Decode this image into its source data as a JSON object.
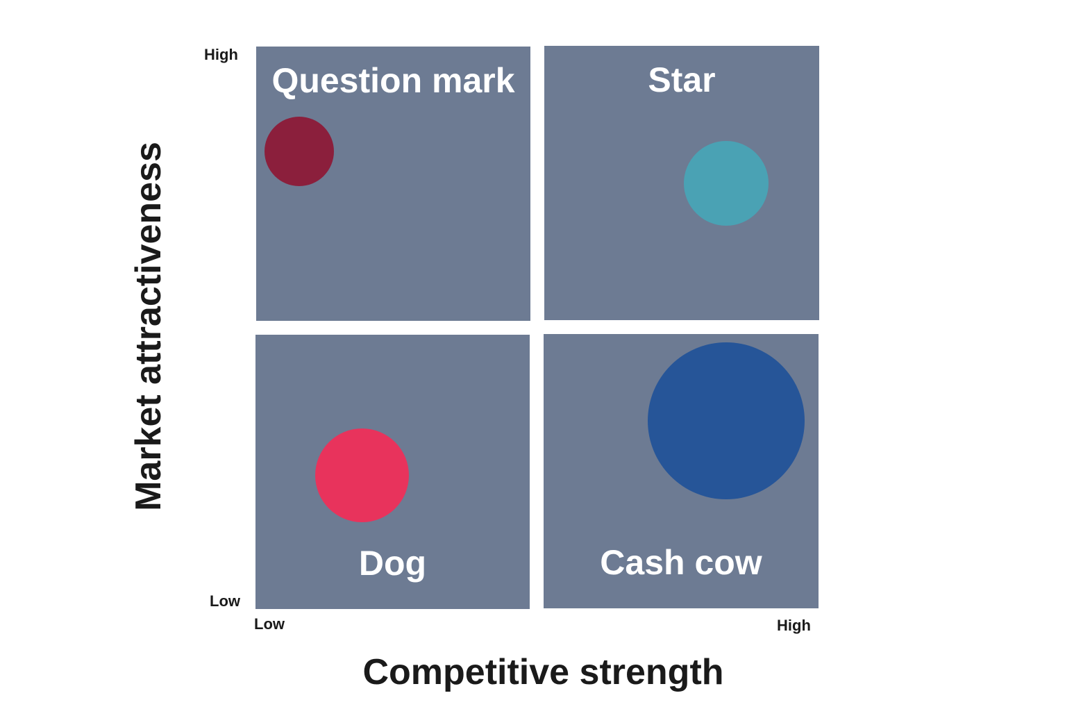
{
  "quadrants": {
    "top_left": "Question mark",
    "top_right": "Star",
    "bottom_left": "Dog",
    "bottom_right": "Cash cow"
  },
  "y_axis": {
    "title": "Market attractiveness",
    "high": "High",
    "low": "Low"
  },
  "x_axis": {
    "title": "Competitive strength",
    "low": "Low",
    "high": "High"
  },
  "colors": {
    "quadrant": "#6d7b93",
    "question_mark_bubble": "#8b1f3c",
    "star_bubble": "#4aa2b4",
    "dog_bubble": "#e8335c",
    "cash_cow_bubble": "#265598"
  }
}
